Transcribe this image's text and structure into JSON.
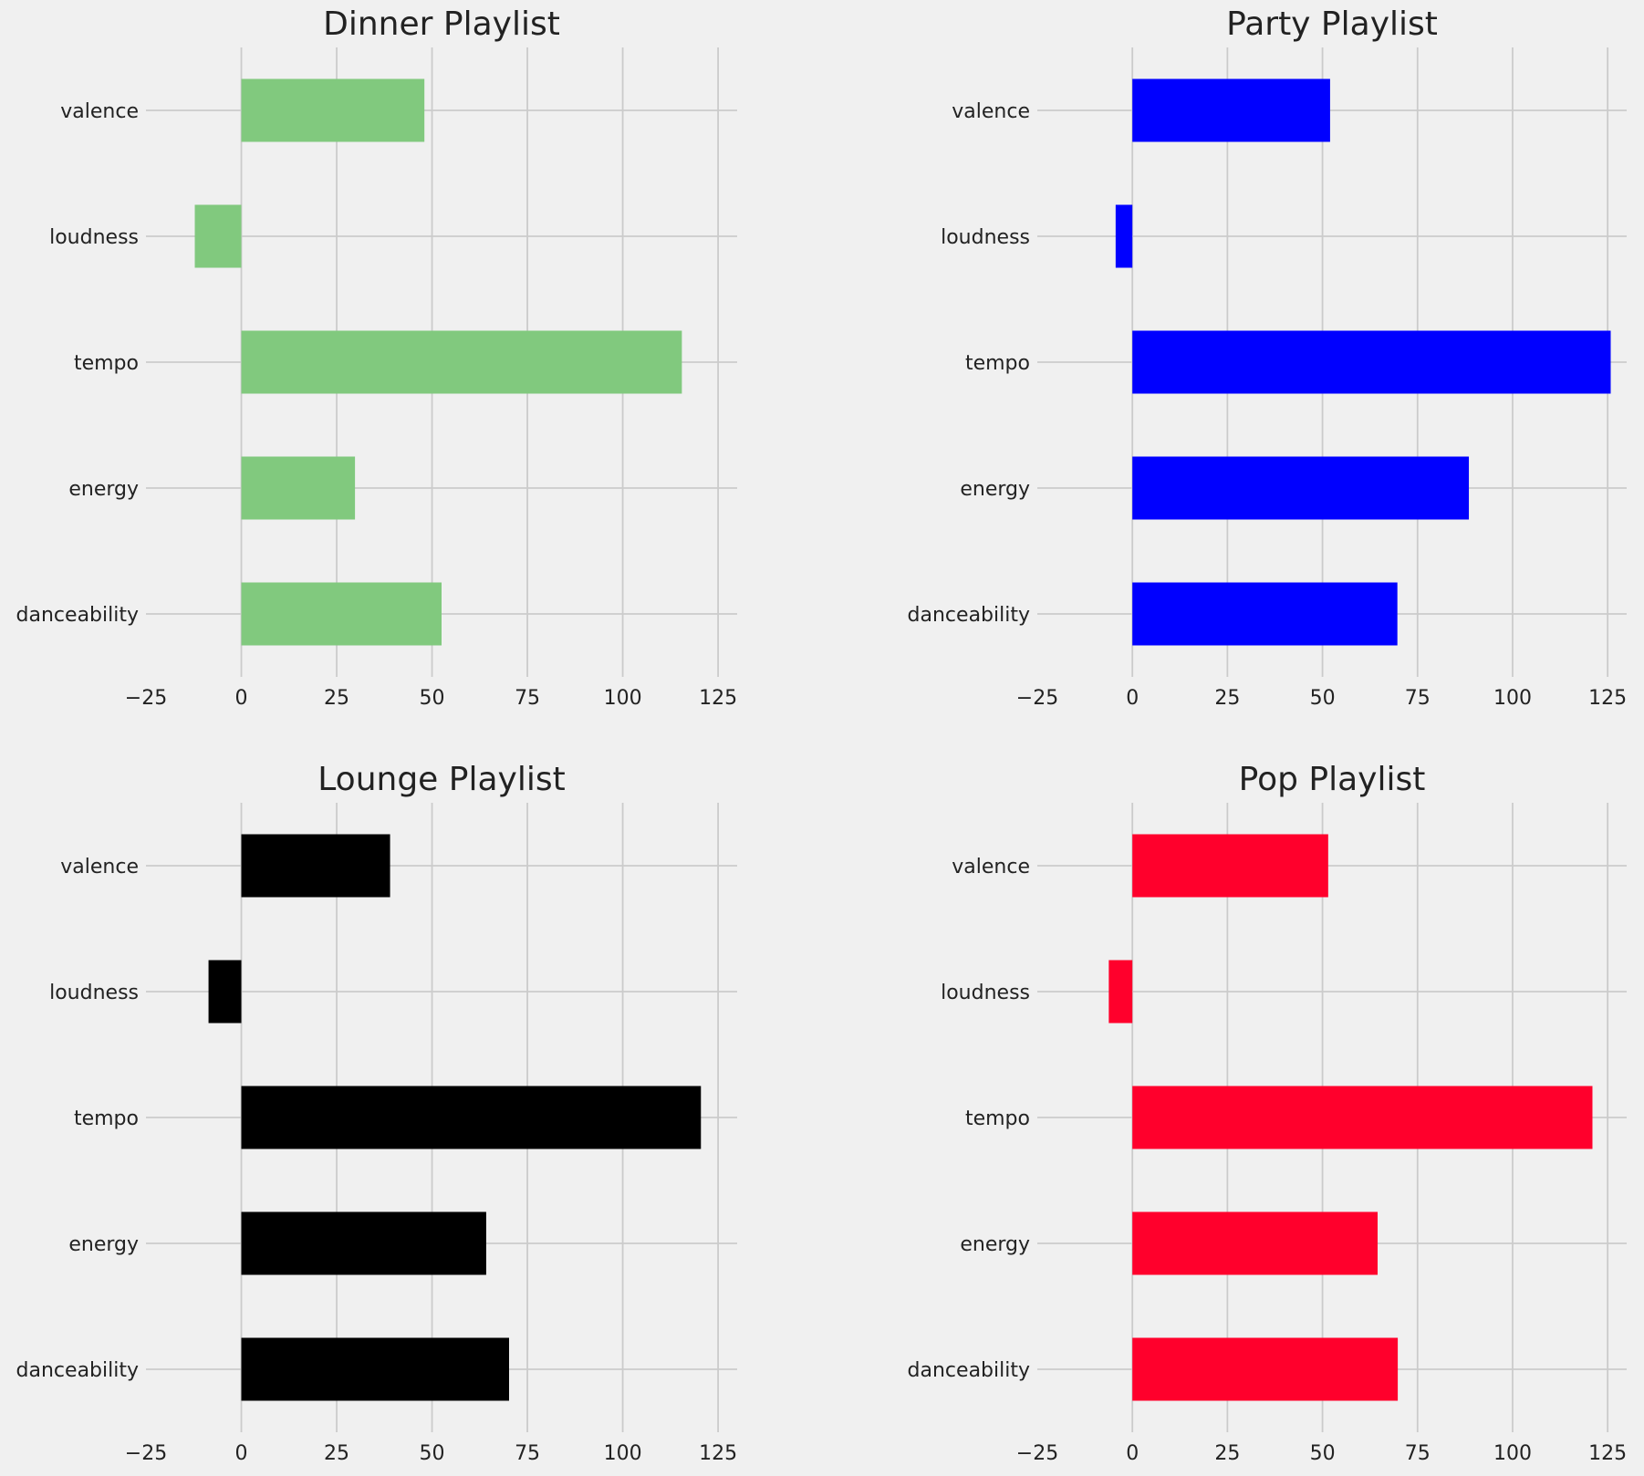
{
  "chart_data": [
    {
      "type": "bar",
      "orientation": "horizontal",
      "title": "Dinner Playlist",
      "color": "#81c97e",
      "categories": [
        "danceability",
        "energy",
        "tempo",
        "loudness",
        "valence"
      ],
      "values": [
        52.5,
        29.8,
        115.5,
        -12.2,
        48.0
      ],
      "xlim": [
        -25,
        130
      ],
      "xticks": [
        -25,
        0,
        25,
        50,
        75,
        100,
        125
      ],
      "xtick_labels": [
        "−25",
        "0",
        "25",
        "50",
        "75",
        "100",
        "125"
      ],
      "grid": true
    },
    {
      "type": "bar",
      "orientation": "horizontal",
      "title": "Party Playlist",
      "color": "#0000ff",
      "categories": [
        "danceability",
        "energy",
        "tempo",
        "loudness",
        "valence"
      ],
      "values": [
        69.7,
        88.5,
        125.8,
        -4.4,
        52.0
      ],
      "xlim": [
        -25,
        130
      ],
      "xticks": [
        -25,
        0,
        25,
        50,
        75,
        100,
        125
      ],
      "xtick_labels": [
        "−25",
        "0",
        "25",
        "50",
        "75",
        "100",
        "125"
      ],
      "grid": true
    },
    {
      "type": "bar",
      "orientation": "horizontal",
      "title": "Lounge Playlist",
      "color": "#000000",
      "categories": [
        "danceability",
        "energy",
        "tempo",
        "loudness",
        "valence"
      ],
      "values": [
        70.2,
        64.2,
        120.5,
        -8.6,
        39.0
      ],
      "xlim": [
        -25,
        130
      ],
      "xticks": [
        -25,
        0,
        25,
        50,
        75,
        100,
        125
      ],
      "xtick_labels": [
        "−25",
        "0",
        "25",
        "50",
        "75",
        "100",
        "125"
      ],
      "grid": true
    },
    {
      "type": "bar",
      "orientation": "horizontal",
      "title": "Pop Playlist",
      "color": "#ff002c",
      "categories": [
        "danceability",
        "energy",
        "tempo",
        "loudness",
        "valence"
      ],
      "values": [
        69.8,
        64.5,
        121.0,
        -6.2,
        51.5
      ],
      "xlim": [
        -25,
        130
      ],
      "xticks": [
        -25,
        0,
        25,
        50,
        75,
        100,
        125
      ],
      "xtick_labels": [
        "−25",
        "0",
        "25",
        "50",
        "75",
        "100",
        "125"
      ],
      "grid": true
    }
  ]
}
